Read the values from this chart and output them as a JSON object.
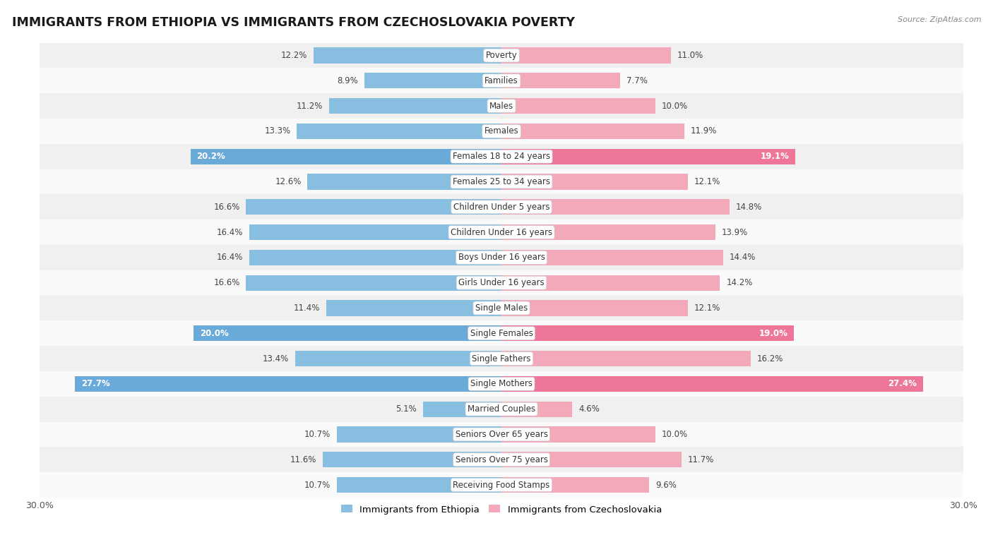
{
  "title": "IMMIGRANTS FROM ETHIOPIA VS IMMIGRANTS FROM CZECHOSLOVAKIA POVERTY",
  "source": "Source: ZipAtlas.com",
  "categories": [
    "Poverty",
    "Families",
    "Males",
    "Females",
    "Females 18 to 24 years",
    "Females 25 to 34 years",
    "Children Under 5 years",
    "Children Under 16 years",
    "Boys Under 16 years",
    "Girls Under 16 years",
    "Single Males",
    "Single Females",
    "Single Fathers",
    "Single Mothers",
    "Married Couples",
    "Seniors Over 65 years",
    "Seniors Over 75 years",
    "Receiving Food Stamps"
  ],
  "ethiopia_values": [
    12.2,
    8.9,
    11.2,
    13.3,
    20.2,
    12.6,
    16.6,
    16.4,
    16.4,
    16.6,
    11.4,
    20.0,
    13.4,
    27.7,
    5.1,
    10.7,
    11.6,
    10.7
  ],
  "czechoslovakia_values": [
    11.0,
    7.7,
    10.0,
    11.9,
    19.1,
    12.1,
    14.8,
    13.9,
    14.4,
    14.2,
    12.1,
    19.0,
    16.2,
    27.4,
    4.6,
    10.0,
    11.7,
    9.6
  ],
  "ethiopia_color_normal": "#88BEE0",
  "czechoslovakia_color_normal": "#F2AABB",
  "ethiopia_color_highlight": "#6AAAD8",
  "czechoslovakia_color_highlight": "#EE7799",
  "highlight_rows": [
    4,
    11,
    13
  ],
  "label_ethiopia": "Immigrants from Ethiopia",
  "label_czechoslovakia": "Immigrants from Czechoslovakia",
  "xlim": 30.0,
  "background_color": "#ffffff",
  "row_bg_even": "#f0f0f0",
  "row_bg_odd": "#fafafa",
  "bar_height": 0.62,
  "title_fontsize": 12.5,
  "cat_fontsize": 8.5,
  "value_fontsize": 8.5
}
